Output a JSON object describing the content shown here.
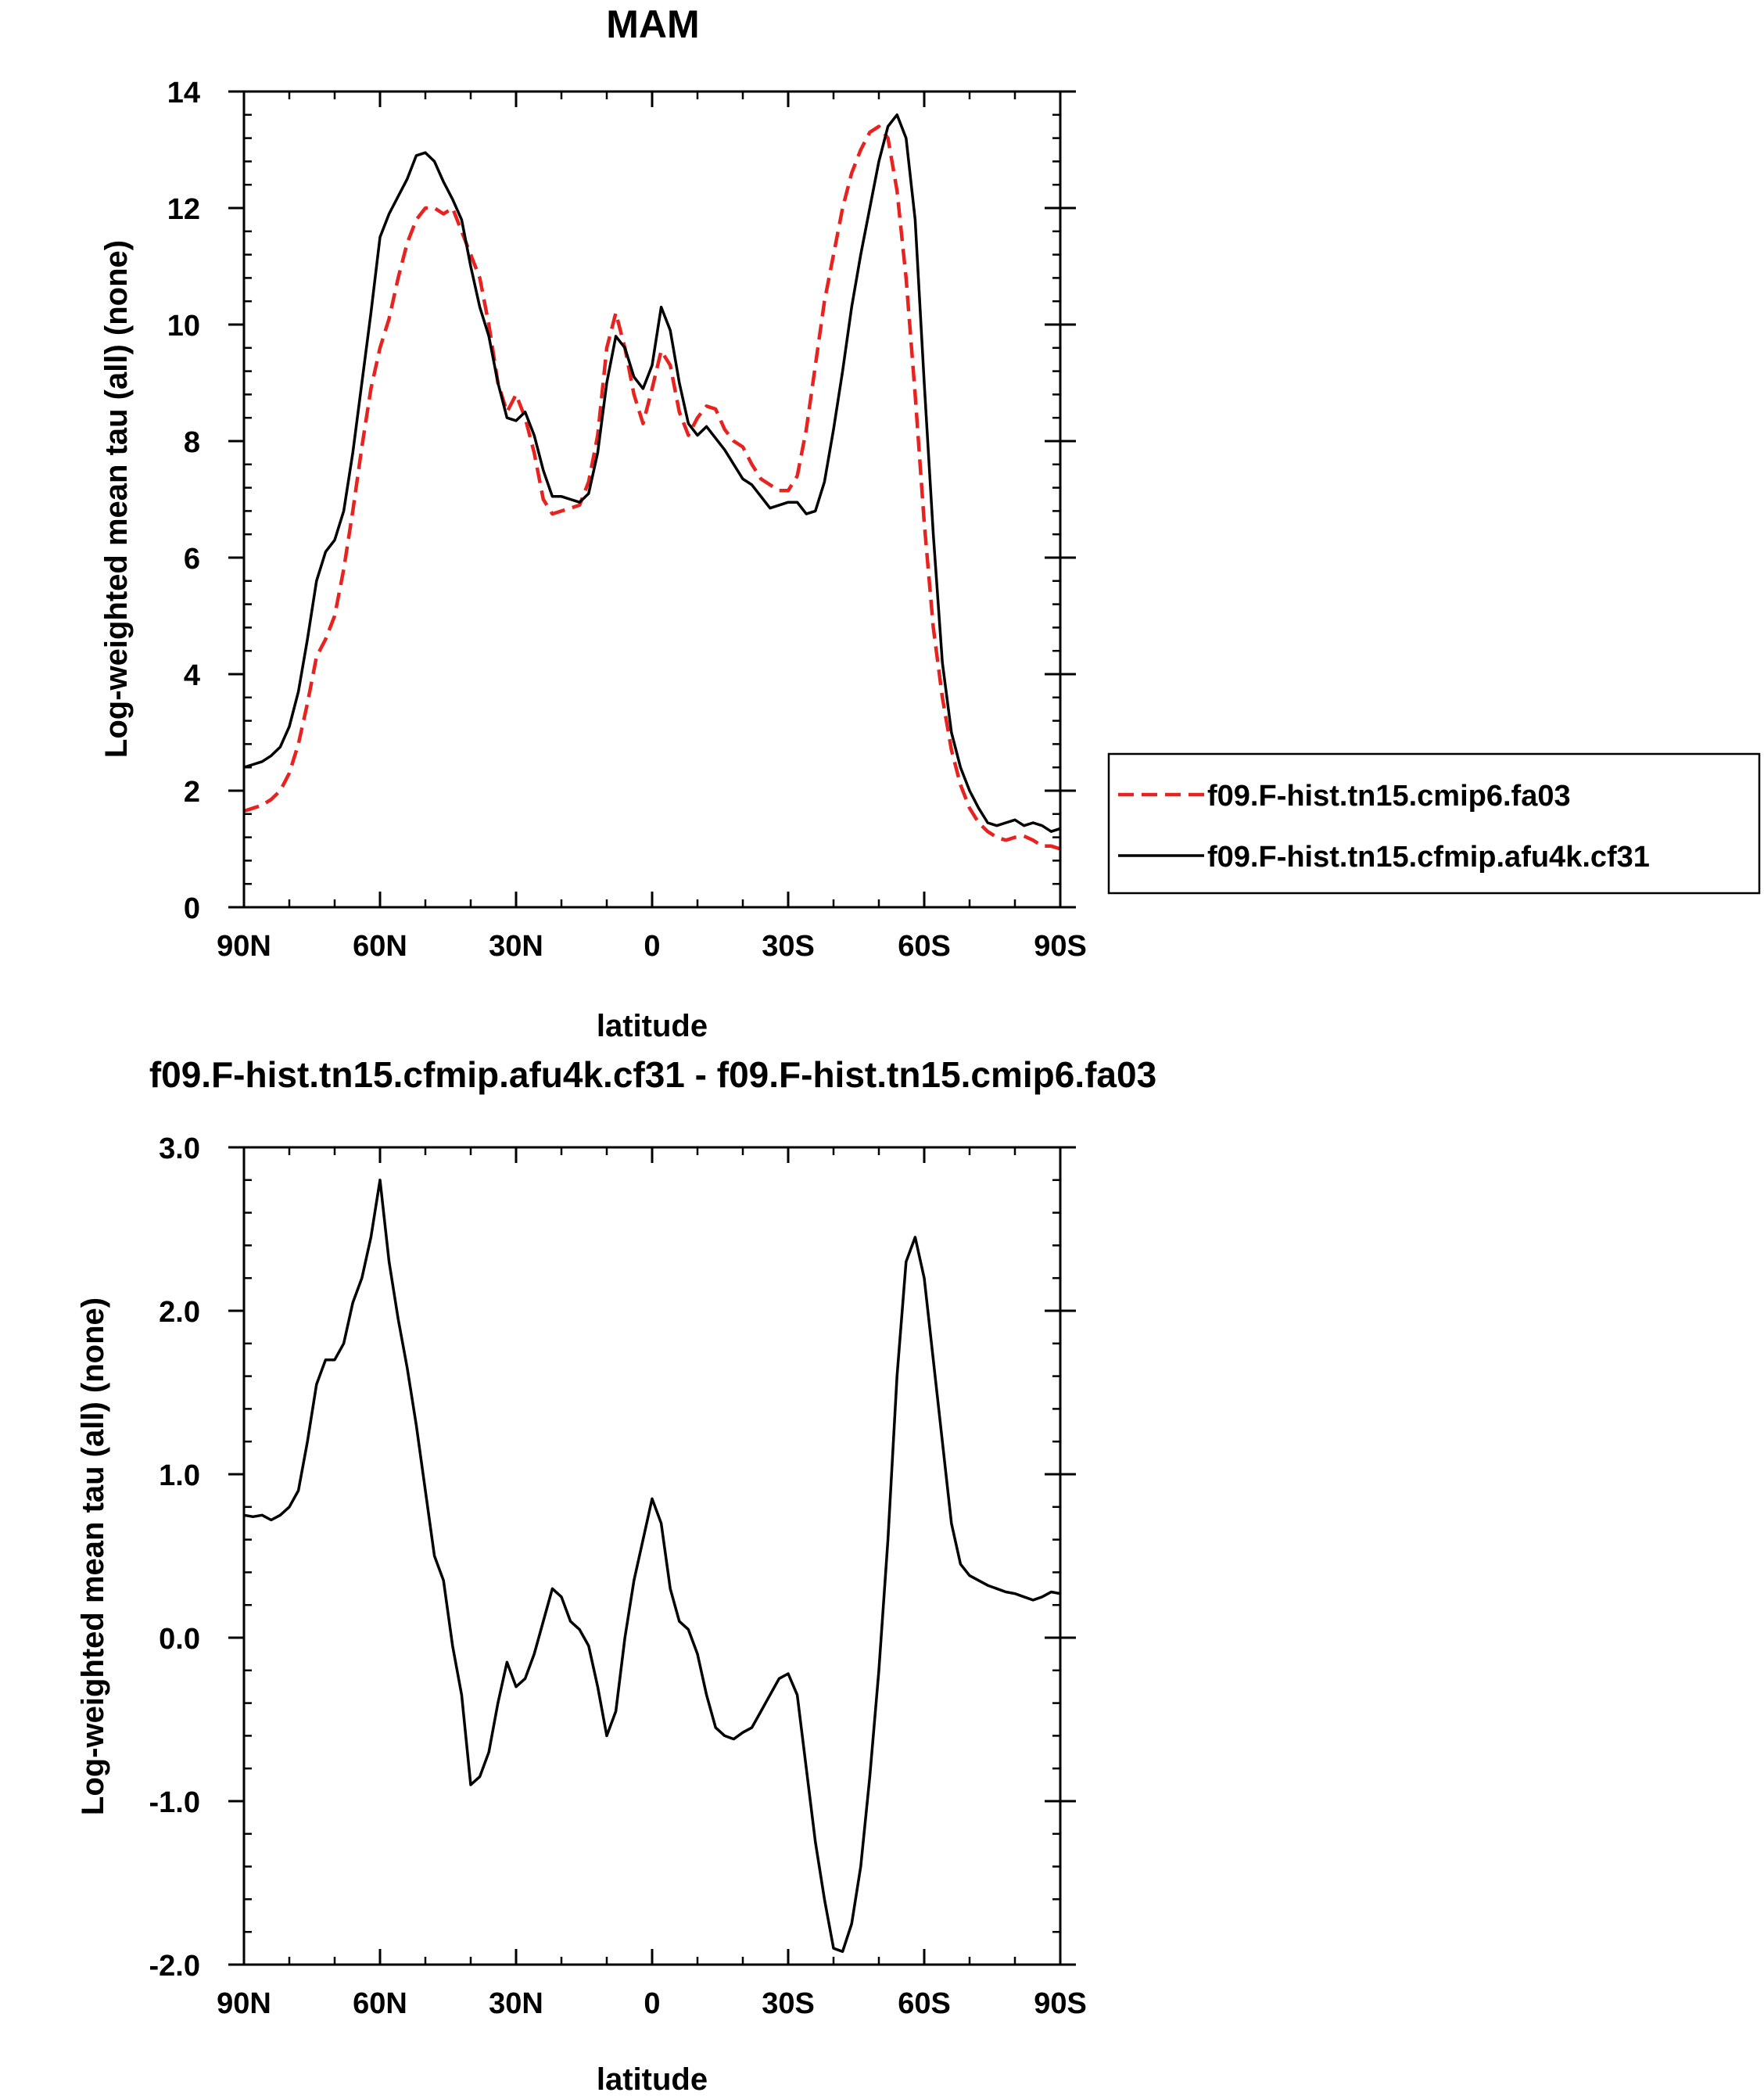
{
  "chart_data": [
    {
      "type": "line",
      "title": "MAM",
      "xlabel": "latitude",
      "ylabel": "Log-weighted mean tau (all) (none)",
      "x_unit": "degrees latitude, +N / -S",
      "xlim": [
        90,
        -90
      ],
      "ylim": [
        0,
        14
      ],
      "xticks": [
        {
          "value": 90,
          "label": "90N"
        },
        {
          "value": 60,
          "label": "60N"
        },
        {
          "value": 30,
          "label": "30N"
        },
        {
          "value": 0,
          "label": "0"
        },
        {
          "value": -30,
          "label": "30S"
        },
        {
          "value": -60,
          "label": "60S"
        },
        {
          "value": -90,
          "label": "90S"
        }
      ],
      "yticks": [
        {
          "value": 0,
          "label": "0"
        },
        {
          "value": 2,
          "label": "2"
        },
        {
          "value": 4,
          "label": "4"
        },
        {
          "value": 6,
          "label": "6"
        },
        {
          "value": 8,
          "label": "8"
        },
        {
          "value": 10,
          "label": "10"
        },
        {
          "value": 12,
          "label": "12"
        },
        {
          "value": 14,
          "label": "14"
        }
      ],
      "legend": "outside-right",
      "grid": false,
      "series": [
        {
          "name": "f09.F-hist.tn15.cmip6.fa03",
          "color": "#e8231f",
          "dash": "dashed",
          "x": [
            90,
            88,
            86,
            84,
            82,
            80,
            78,
            76,
            74,
            72,
            70,
            68,
            66,
            64,
            62,
            60,
            58,
            56,
            54,
            52,
            50,
            48,
            46,
            44,
            42,
            40,
            38,
            36,
            34,
            32,
            30,
            28,
            26,
            24,
            22,
            20,
            18,
            16,
            14,
            12,
            10,
            8,
            6,
            4,
            2,
            0,
            -2,
            -4,
            -6,
            -8,
            -10,
            -12,
            -14,
            -16,
            -18,
            -20,
            -22,
            -24,
            -26,
            -28,
            -30,
            -32,
            -34,
            -36,
            -38,
            -40,
            -42,
            -44,
            -46,
            -48,
            -50,
            -52,
            -54,
            -56,
            -58,
            -60,
            -62,
            -64,
            -66,
            -68,
            -70,
            -72,
            -74,
            -76,
            -78,
            -80,
            -82,
            -84,
            -86,
            -88,
            -90
          ],
          "y": [
            1.65,
            1.7,
            1.75,
            1.85,
            2.0,
            2.3,
            2.8,
            3.5,
            4.3,
            4.6,
            5.0,
            5.8,
            6.8,
            7.9,
            8.9,
            9.6,
            10.1,
            10.8,
            11.4,
            11.8,
            12.0,
            12.0,
            11.9,
            12.0,
            11.6,
            11.2,
            10.8,
            10.0,
            9.0,
            8.5,
            8.8,
            8.4,
            7.8,
            7.0,
            6.75,
            6.8,
            6.85,
            6.9,
            7.3,
            8.1,
            9.6,
            10.2,
            9.6,
            8.8,
            8.3,
            8.9,
            9.55,
            9.3,
            8.5,
            8.1,
            8.4,
            8.6,
            8.55,
            8.2,
            8.0,
            7.9,
            7.6,
            7.35,
            7.25,
            7.15,
            7.15,
            7.4,
            8.2,
            9.3,
            10.4,
            11.2,
            12.0,
            12.6,
            13.0,
            13.3,
            13.4,
            13.2,
            12.3,
            10.8,
            8.8,
            6.6,
            4.8,
            3.6,
            2.7,
            2.1,
            1.7,
            1.45,
            1.3,
            1.2,
            1.15,
            1.2,
            1.22,
            1.15,
            1.05,
            1.05,
            1.0
          ]
        },
        {
          "name": "f09.F-hist.tn15.cfmip.afu4k.cf31",
          "color": "#000000",
          "dash": "solid",
          "x": [
            90,
            88,
            86,
            84,
            82,
            80,
            78,
            76,
            74,
            72,
            70,
            68,
            66,
            64,
            62,
            60,
            58,
            56,
            54,
            52,
            50,
            48,
            46,
            44,
            42,
            40,
            38,
            36,
            34,
            32,
            30,
            28,
            26,
            24,
            22,
            20,
            18,
            16,
            14,
            12,
            10,
            8,
            6,
            4,
            2,
            0,
            -2,
            -4,
            -6,
            -8,
            -10,
            -12,
            -14,
            -16,
            -18,
            -20,
            -22,
            -24,
            -26,
            -28,
            -30,
            -32,
            -34,
            -36,
            -38,
            -40,
            -42,
            -44,
            -46,
            -48,
            -50,
            -52,
            -54,
            -56,
            -58,
            -60,
            -62,
            -64,
            -66,
            -68,
            -70,
            -72,
            -74,
            -76,
            -78,
            -80,
            -82,
            -84,
            -86,
            -88,
            -90
          ],
          "y": [
            2.4,
            2.45,
            2.5,
            2.6,
            2.75,
            3.1,
            3.7,
            4.6,
            5.6,
            6.1,
            6.3,
            6.8,
            7.8,
            9.0,
            10.2,
            11.5,
            11.9,
            12.2,
            12.5,
            12.9,
            12.95,
            12.8,
            12.45,
            12.15,
            11.8,
            11.0,
            10.3,
            9.8,
            9.0,
            8.4,
            8.35,
            8.5,
            8.1,
            7.5,
            7.05,
            7.05,
            7.0,
            6.95,
            7.1,
            7.8,
            9.0,
            9.8,
            9.6,
            9.1,
            8.9,
            9.3,
            10.3,
            9.9,
            9.0,
            8.3,
            8.1,
            8.25,
            8.05,
            7.85,
            7.6,
            7.35,
            7.25,
            7.05,
            6.85,
            6.9,
            6.95,
            6.95,
            6.75,
            6.8,
            7.3,
            8.2,
            9.2,
            10.3,
            11.2,
            12.0,
            12.8,
            13.4,
            13.6,
            13.2,
            11.8,
            9.0,
            6.4,
            4.2,
            3.0,
            2.4,
            2.0,
            1.7,
            1.45,
            1.4,
            1.45,
            1.5,
            1.4,
            1.45,
            1.4,
            1.3,
            1.35
          ]
        }
      ]
    },
    {
      "type": "line",
      "title": "f09.F-hist.tn15.cfmip.afu4k.cf31 - f09.F-hist.tn15.cmip6.fa03",
      "xlabel": "latitude",
      "ylabel": "Log-weighted mean tau (all) (none)",
      "x_unit": "degrees latitude, +N / -S",
      "xlim": [
        90,
        -90
      ],
      "ylim": [
        -2.0,
        3.0
      ],
      "xticks": [
        {
          "value": 90,
          "label": "90N"
        },
        {
          "value": 60,
          "label": "60N"
        },
        {
          "value": 30,
          "label": "30N"
        },
        {
          "value": 0,
          "label": "0"
        },
        {
          "value": -30,
          "label": "30S"
        },
        {
          "value": -60,
          "label": "60S"
        },
        {
          "value": -90,
          "label": "90S"
        }
      ],
      "yticks": [
        {
          "value": -2.0,
          "label": "-2.0"
        },
        {
          "value": -1.0,
          "label": "-1.0"
        },
        {
          "value": 0.0,
          "label": "0.0"
        },
        {
          "value": 1.0,
          "label": "1.0"
        },
        {
          "value": 2.0,
          "label": "2.0"
        },
        {
          "value": 3.0,
          "label": "3.0"
        }
      ],
      "grid": false,
      "series": [
        {
          "color": "#000000",
          "dash": "solid",
          "x": [
            90,
            88,
            86,
            84,
            82,
            80,
            78,
            76,
            74,
            72,
            70,
            68,
            66,
            64,
            62,
            60,
            58,
            56,
            54,
            52,
            50,
            48,
            46,
            44,
            42,
            40,
            38,
            36,
            34,
            32,
            30,
            28,
            26,
            24,
            22,
            20,
            18,
            16,
            14,
            12,
            10,
            8,
            6,
            4,
            2,
            0,
            -2,
            -4,
            -6,
            -8,
            -10,
            -12,
            -14,
            -16,
            -18,
            -20,
            -22,
            -24,
            -26,
            -28,
            -30,
            -32,
            -34,
            -36,
            -38,
            -40,
            -42,
            -44,
            -46,
            -48,
            -50,
            -52,
            -54,
            -56,
            -58,
            -60,
            -62,
            -64,
            -66,
            -68,
            -70,
            -72,
            -74,
            -76,
            -78,
            -80,
            -82,
            -84,
            -86,
            -88,
            -90
          ],
          "y": [
            0.75,
            0.74,
            0.75,
            0.72,
            0.75,
            0.8,
            0.9,
            1.2,
            1.55,
            1.7,
            1.7,
            1.8,
            2.05,
            2.2,
            2.45,
            2.8,
            2.3,
            1.95,
            1.65,
            1.3,
            0.9,
            0.5,
            0.35,
            -0.05,
            -0.35,
            -0.9,
            -0.85,
            -0.7,
            -0.4,
            -0.15,
            -0.3,
            -0.25,
            -0.1,
            0.1,
            0.3,
            0.25,
            0.1,
            0.05,
            -0.05,
            -0.3,
            -0.6,
            -0.45,
            0.0,
            0.35,
            0.6,
            0.85,
            0.7,
            0.3,
            0.1,
            0.05,
            -0.1,
            -0.35,
            -0.55,
            -0.6,
            -0.62,
            -0.58,
            -0.55,
            -0.45,
            -0.35,
            -0.25,
            -0.22,
            -0.35,
            -0.8,
            -1.25,
            -1.6,
            -1.9,
            -1.92,
            -1.75,
            -1.4,
            -0.85,
            -0.2,
            0.6,
            1.6,
            2.3,
            2.45,
            2.2,
            1.7,
            1.2,
            0.7,
            0.45,
            0.38,
            0.35,
            0.32,
            0.3,
            0.28,
            0.27,
            0.25,
            0.23,
            0.25,
            0.28,
            0.27
          ]
        }
      ]
    }
  ]
}
